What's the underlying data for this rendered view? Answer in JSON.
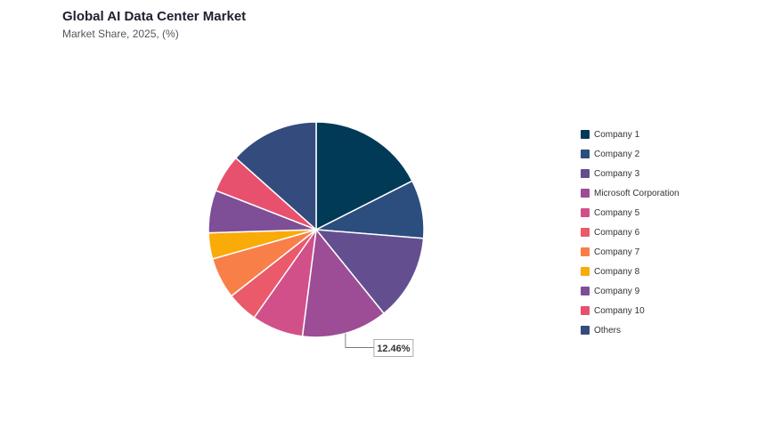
{
  "chart_data": {
    "type": "pie",
    "title": "Global AI Data Center Market",
    "subtitle": "Market Share, 2025, (%)",
    "categories": [
      "Company 1",
      "Company 2",
      "Company 3",
      "Microsoft Corporation",
      "Company 5",
      "Company 6",
      "Company 7",
      "Company 8",
      "Company 9",
      "Company 10",
      "Others"
    ],
    "values": [
      17.0,
      8.5,
      12.5,
      12.46,
      7.5,
      4.5,
      6.0,
      3.8,
      6.2,
      5.5,
      13.0
    ],
    "colors": [
      "#003a57",
      "#2b4e7e",
      "#634f90",
      "#9c4d95",
      "#d2508a",
      "#ea5a6a",
      "#f97f49",
      "#f9ab08",
      "#7e4e97",
      "#e8516d",
      "#344b7e"
    ],
    "annotations": [
      {
        "category": "Microsoft Corporation",
        "label": "12.46%"
      }
    ],
    "legend_position": "right",
    "start_angle": "12 o'clock",
    "direction": "clockwise"
  }
}
